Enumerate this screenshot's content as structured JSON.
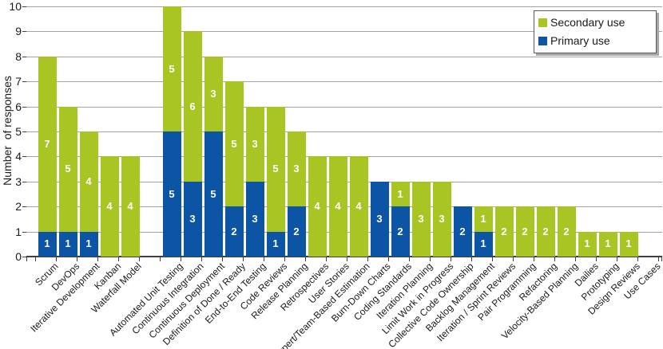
{
  "chart_data": {
    "type": "bar",
    "stacked": true,
    "title": "",
    "xlabel": "",
    "ylabel": "Number  of responses",
    "ylim": [
      0,
      10
    ],
    "yticks": [
      "0",
      "1",
      "2",
      "3",
      "4",
      "5",
      "6",
      "7",
      "8",
      "9",
      "10"
    ],
    "grid": true,
    "value_labels_shown": true,
    "group_gap_after_category_index": 4,
    "categories": [
      "Scrum",
      "DevOps",
      "Iterative Development",
      "Kanban",
      "Waterfall Model",
      "Automated Unit Testing",
      "Continuous Integration",
      "Continuous Deployment",
      "Definition of Done / Ready",
      "End-to-End Testing",
      "Code Reviews",
      "Release Planning",
      "Retrospectives",
      "User Stories",
      "Expert/Team-Based Estimation",
      "Burn-Down Charts",
      "Coding Standards",
      "Iteration Planning",
      "Limit Work in Progress",
      "Collective Code Ownership",
      "Backlog Management",
      "Iteration / Sprint Reviews",
      "Pair Programming",
      "Refactoring",
      "Velocity-Based Planning",
      "Dailies",
      "Prototyping",
      "Design Reviews",
      "Use Cases"
    ],
    "series": [
      {
        "name": "Primary use",
        "color": "#0b55a4",
        "values": [
          1,
          1,
          1,
          0,
          0,
          5,
          3,
          5,
          2,
          3,
          1,
          2,
          0,
          0,
          0,
          3,
          2,
          0,
          0,
          2,
          1,
          0,
          0,
          0,
          0,
          0,
          0,
          0,
          0
        ]
      },
      {
        "name": "Secondary use",
        "color": "#a8c524",
        "values": [
          7,
          5,
          4,
          4,
          4,
          5,
          6,
          3,
          5,
          3,
          5,
          3,
          4,
          4,
          4,
          0,
          1,
          3,
          3,
          0,
          1,
          2,
          2,
          2,
          2,
          1,
          1,
          1,
          0
        ]
      }
    ],
    "legend": {
      "position": "top-right",
      "entries": [
        {
          "label": "Secondary use",
          "color": "#a8c524"
        },
        {
          "label": "Primary use",
          "color": "#0b55a4"
        }
      ]
    }
  }
}
